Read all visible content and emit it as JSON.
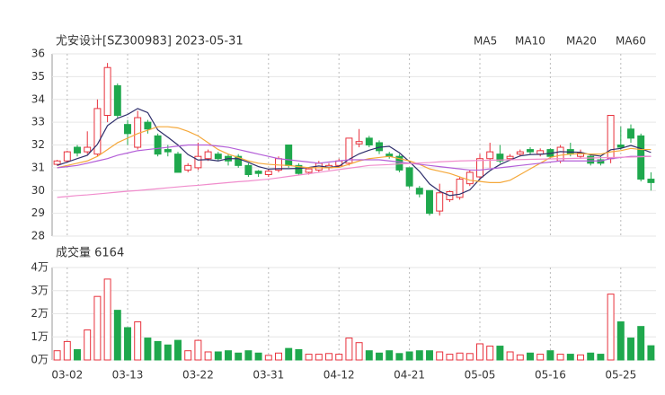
{
  "chart_data": [
    {
      "type": "candlestick",
      "title": "尤安设计[SZ300983] 2023-05-31",
      "ylim": [
        28,
        36
      ],
      "yticks": [
        28,
        29,
        30,
        31,
        32,
        33,
        34,
        35,
        36
      ],
      "grid": true,
      "legend": "top-right",
      "up_color": "#e8313c",
      "down_color": "#1fa84d",
      "open": [
        31.15,
        31.3,
        31.9,
        31.7,
        31.6,
        33.3,
        34.6,
        32.9,
        31.9,
        33.0,
        32.4,
        31.8,
        31.6,
        30.9,
        31.0,
        31.4,
        31.6,
        31.5,
        31.5,
        31.1,
        30.85,
        30.7,
        30.9,
        32.0,
        31.1,
        30.8,
        30.9,
        31.0,
        31.1,
        31.2,
        32.05,
        32.3,
        32.1,
        31.6,
        31.5,
        31.0,
        30.1,
        30.0,
        29.1,
        29.6,
        29.7,
        30.3,
        30.6,
        31.4,
        31.6,
        31.4,
        31.6,
        31.8,
        31.6,
        31.8,
        31.3,
        31.8,
        31.5,
        31.5,
        31.35,
        31.4,
        32.0,
        32.7,
        32.4,
        30.5
      ],
      "high": [
        31.35,
        31.75,
        32.0,
        32.6,
        34.0,
        35.6,
        34.7,
        33.1,
        33.5,
        33.1,
        32.5,
        32.0,
        31.7,
        31.2,
        32.1,
        31.8,
        31.7,
        31.6,
        31.6,
        31.2,
        30.9,
        30.95,
        31.5,
        32.0,
        31.2,
        31.0,
        31.3,
        31.2,
        31.4,
        32.3,
        32.7,
        32.4,
        32.2,
        31.7,
        31.6,
        31.0,
        30.2,
        30.0,
        30.3,
        30.0,
        30.6,
        30.9,
        31.6,
        32.1,
        32.0,
        31.6,
        31.8,
        31.9,
        31.85,
        31.85,
        32.0,
        32.1,
        31.8,
        31.6,
        31.5,
        33.3,
        32.8,
        32.9,
        32.5,
        30.8
      ],
      "low": [
        31.1,
        31.25,
        31.5,
        31.6,
        31.5,
        33.0,
        33.2,
        32.0,
        31.8,
        32.5,
        31.5,
        31.5,
        30.8,
        30.8,
        30.9,
        31.3,
        31.3,
        31.1,
        31.0,
        30.6,
        30.6,
        30.6,
        30.8,
        31.0,
        30.7,
        30.7,
        30.8,
        30.9,
        31.0,
        31.1,
        31.9,
        31.9,
        31.6,
        31.4,
        30.8,
        30.1,
        29.7,
        28.9,
        28.9,
        29.5,
        29.6,
        30.2,
        30.5,
        31.0,
        31.2,
        31.3,
        31.5,
        31.6,
        31.5,
        31.4,
        31.2,
        31.5,
        31.4,
        31.1,
        31.1,
        31.2,
        31.8,
        32.1,
        30.4,
        30.0
      ],
      "close": [
        31.3,
        31.7,
        31.65,
        31.9,
        33.6,
        35.4,
        33.3,
        32.5,
        33.2,
        32.7,
        31.6,
        31.7,
        30.8,
        31.1,
        31.5,
        31.7,
        31.4,
        31.3,
        31.1,
        30.7,
        30.75,
        30.85,
        31.4,
        31.1,
        30.75,
        30.95,
        31.2,
        31.1,
        31.3,
        32.3,
        32.15,
        32.0,
        31.75,
        31.5,
        30.9,
        30.2,
        29.85,
        29.0,
        29.9,
        29.95,
        30.5,
        30.8,
        31.4,
        31.7,
        31.3,
        31.5,
        31.7,
        31.7,
        31.75,
        31.5,
        31.9,
        31.6,
        31.65,
        31.2,
        31.2,
        33.3,
        31.9,
        32.3,
        30.5,
        30.35
      ],
      "series": [
        {
          "name": "MA5",
          "color": "#2e2e6b",
          "values": [
            31.1,
            31.25,
            31.4,
            31.55,
            32.03,
            32.85,
            33.17,
            33.34,
            33.6,
            33.42,
            32.66,
            32.34,
            32.0,
            31.58,
            31.34,
            31.36,
            31.3,
            31.4,
            31.4,
            31.24,
            31.05,
            30.94,
            30.96,
            30.96,
            30.97,
            31.01,
            31.08,
            31.02,
            31.06,
            31.37,
            31.61,
            31.77,
            31.9,
            31.94,
            31.66,
            31.27,
            30.84,
            30.29,
            29.97,
            29.78,
            29.84,
            30.03,
            30.51,
            30.87,
            31.14,
            31.34,
            31.52,
            31.58,
            31.59,
            31.63,
            31.71,
            31.69,
            31.68,
            31.57,
            31.51,
            31.79,
            31.85,
            31.98,
            31.84,
            31.67
          ]
        },
        {
          "name": "MA10",
          "color": "#f5a83a",
          "values": [
            31.0,
            31.1,
            31.2,
            31.3,
            31.5,
            31.8,
            32.1,
            32.3,
            32.5,
            32.65,
            32.8,
            32.8,
            32.75,
            32.6,
            32.4,
            32.1,
            31.8,
            31.6,
            31.45,
            31.3,
            31.2,
            31.15,
            31.12,
            31.1,
            31.05,
            31.0,
            31.0,
            31.0,
            31.02,
            31.15,
            31.3,
            31.4,
            31.45,
            31.5,
            31.4,
            31.3,
            31.15,
            30.95,
            30.85,
            30.75,
            30.6,
            30.45,
            30.4,
            30.35,
            30.35,
            30.45,
            30.7,
            30.95,
            31.2,
            31.45,
            31.55,
            31.6,
            31.62,
            31.6,
            31.6,
            31.7,
            31.75,
            31.85,
            31.8,
            31.8
          ]
        },
        {
          "name": "MA20",
          "color": "#b45fd8",
          "values": [
            31.0,
            31.05,
            31.1,
            31.2,
            31.3,
            31.4,
            31.55,
            31.65,
            31.75,
            31.8,
            31.85,
            31.9,
            31.95,
            32.0,
            32.0,
            32.0,
            31.95,
            31.9,
            31.8,
            31.7,
            31.6,
            31.5,
            31.4,
            31.35,
            31.3,
            31.25,
            31.2,
            31.25,
            31.3,
            31.35,
            31.35,
            31.35,
            31.35,
            31.3,
            31.25,
            31.2,
            31.15,
            31.1,
            31.05,
            31.0,
            30.95,
            30.9,
            30.9,
            30.95,
            31.0,
            31.05,
            31.1,
            31.15,
            31.2,
            31.25,
            31.3,
            31.3,
            31.3,
            31.3,
            31.3,
            31.4,
            31.45,
            31.5,
            31.5,
            31.5
          ]
        },
        {
          "name": "MA60",
          "color": "#f08ccc",
          "values": [
            29.7,
            29.74,
            29.78,
            29.81,
            29.85,
            29.89,
            29.93,
            29.97,
            30.0,
            30.04,
            30.08,
            30.12,
            30.16,
            30.2,
            30.23,
            30.27,
            30.31,
            30.35,
            30.39,
            30.42,
            30.46,
            30.5,
            30.56,
            30.62,
            30.68,
            30.74,
            30.8,
            30.86,
            30.92,
            30.98,
            31.04,
            31.1,
            31.12,
            31.14,
            31.17,
            31.19,
            31.21,
            31.23,
            31.26,
            31.28,
            31.3,
            31.31,
            31.32,
            31.33,
            31.34,
            31.35,
            31.36,
            31.37,
            31.38,
            31.39,
            31.4,
            31.41,
            31.42,
            31.43,
            31.44,
            31.45,
            31.46,
            31.47,
            31.48,
            31.5
          ]
        }
      ]
    },
    {
      "type": "bar",
      "title": "成交量 6164",
      "categories": [
        null,
        "03-02",
        null,
        null,
        null,
        null,
        null,
        "03-13",
        null,
        null,
        null,
        null,
        null,
        null,
        "03-22",
        null,
        null,
        null,
        null,
        null,
        null,
        "03-31",
        null,
        null,
        null,
        null,
        null,
        null,
        "04-12",
        null,
        null,
        null,
        null,
        null,
        null,
        "04-21",
        null,
        null,
        null,
        null,
        null,
        null,
        "05-05",
        null,
        null,
        null,
        null,
        null,
        null,
        "05-16",
        null,
        null,
        null,
        null,
        null,
        null,
        "05-25",
        null,
        null,
        null
      ],
      "values": [
        0.4,
        0.8,
        0.45,
        1.3,
        2.75,
        3.5,
        2.15,
        1.4,
        1.65,
        0.95,
        0.8,
        0.65,
        0.85,
        0.4,
        0.85,
        0.35,
        0.35,
        0.4,
        0.3,
        0.4,
        0.3,
        0.2,
        0.3,
        0.5,
        0.45,
        0.25,
        0.25,
        0.28,
        0.25,
        0.95,
        0.75,
        0.4,
        0.3,
        0.4,
        0.28,
        0.35,
        0.4,
        0.4,
        0.35,
        0.25,
        0.3,
        0.28,
        0.7,
        0.6,
        0.6,
        0.35,
        0.22,
        0.3,
        0.25,
        0.4,
        0.25,
        0.25,
        0.22,
        0.3,
        0.25,
        2.85,
        1.65,
        0.95,
        1.45,
        0.6164
      ],
      "ylim": [
        0,
        4
      ],
      "yticks": [
        {
          "value": 0,
          "label": "0万"
        },
        {
          "value": 1,
          "label": "1万"
        },
        {
          "value": 2,
          "label": "2万"
        },
        {
          "value": 3,
          "label": "3万"
        },
        {
          "value": 4,
          "label": "4万"
        }
      ],
      "grid": true
    }
  ]
}
